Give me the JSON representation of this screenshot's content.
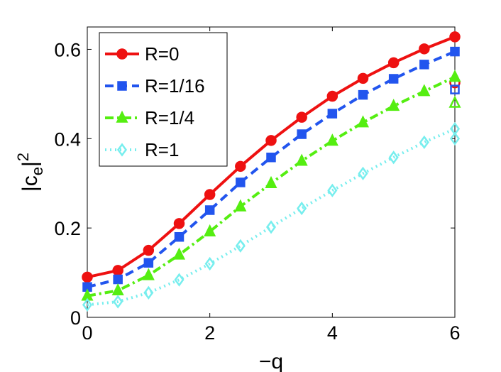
{
  "chart_data": {
    "type": "line",
    "xlabel": "−q",
    "ylabel": {
      "base": "|c",
      "subscript": "e",
      "close": "|",
      "superscript": "2"
    },
    "xlim": [
      0,
      6
    ],
    "ylim": [
      0,
      0.65
    ],
    "xticks": [
      "0",
      "2",
      "4",
      "6"
    ],
    "yticks": [
      "0",
      "0.2",
      "0.4",
      "0.6"
    ],
    "legend_position": "top-left",
    "x": [
      0,
      0.5,
      1,
      1.5,
      2,
      2.5,
      3,
      3.5,
      4,
      4.5,
      5,
      5.5,
      6
    ],
    "series": [
      {
        "name": "R=0",
        "color": "#ee1111",
        "line_style": "solid",
        "marker": "circle",
        "values": [
          0.09,
          0.105,
          0.15,
          0.21,
          0.275,
          0.338,
          0.396,
          0.448,
          0.495,
          0.535,
          0.57,
          0.601,
          0.628
        ],
        "extra_points": [
          {
            "x": 6,
            "y": 0.525
          }
        ]
      },
      {
        "name": "R=1/16",
        "color": "#2255ee",
        "line_style": "dashed",
        "marker": "square",
        "values": [
          0.068,
          0.085,
          0.122,
          0.18,
          0.24,
          0.302,
          0.358,
          0.41,
          0.456,
          0.498,
          0.534,
          0.566,
          0.595
        ],
        "extra_points": [
          {
            "x": 6,
            "y": 0.51
          }
        ]
      },
      {
        "name": "R=1/4",
        "color": "#55ee11",
        "line_style": "dashdot",
        "marker": "triangle",
        "values": [
          0.048,
          0.06,
          0.094,
          0.14,
          0.192,
          0.248,
          0.3,
          0.35,
          0.395,
          0.436,
          0.473,
          0.506,
          0.538
        ],
        "extra_points": [
          {
            "x": 6,
            "y": 0.48
          }
        ]
      },
      {
        "name": "R=1",
        "color": "#77eeee",
        "line_style": "dotted",
        "marker": "diamond",
        "values": [
          0.028,
          0.035,
          0.055,
          0.084,
          0.12,
          0.16,
          0.202,
          0.244,
          0.284,
          0.322,
          0.358,
          0.392,
          0.422
        ],
        "extra_points": [
          {
            "x": 6,
            "y": 0.4
          }
        ]
      }
    ]
  }
}
